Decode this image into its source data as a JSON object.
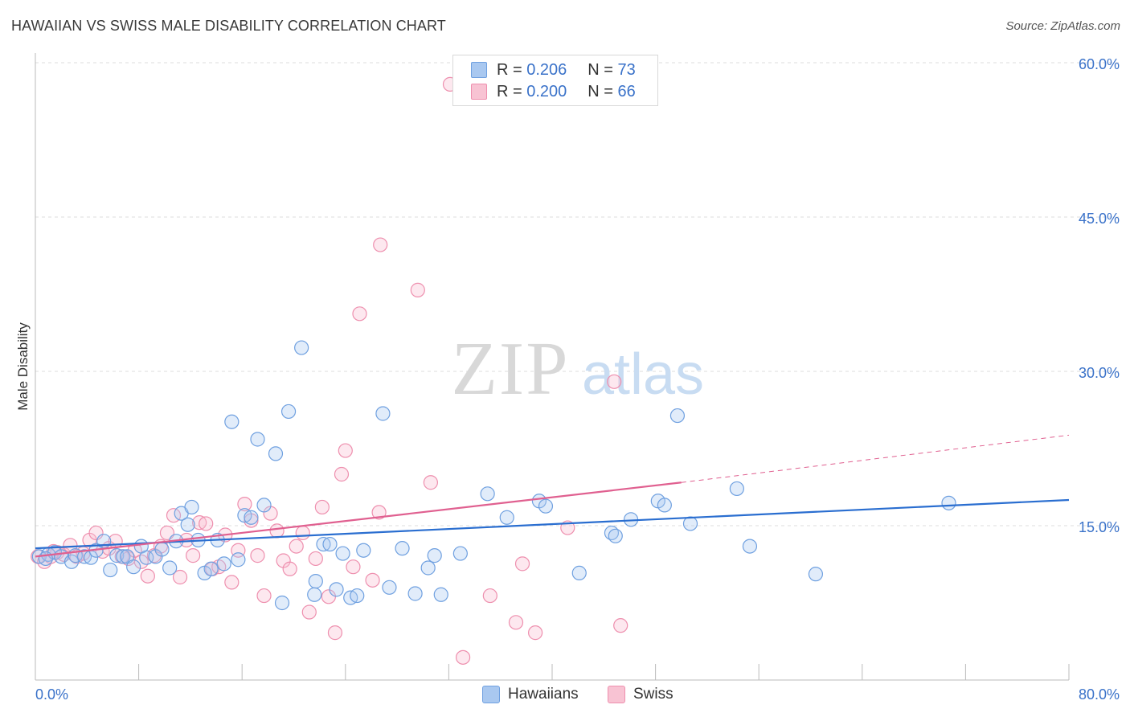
{
  "title": "HAWAIIAN VS SWISS MALE DISABILITY CORRELATION CHART",
  "source": "Source: ZipAtlas.com",
  "watermark": {
    "zip": "ZIP",
    "atlas": "atlas"
  },
  "legend": {
    "rows": [
      {
        "r_label": "R =",
        "r_value": "0.206",
        "n_label": "N =",
        "n_value": "73",
        "color": "#a9c8f0",
        "border": "#6fa0e0"
      },
      {
        "r_label": "R =",
        "r_value": "0.200",
        "n_label": "N =",
        "n_value": "66",
        "color": "#f8c3d3",
        "border": "#ee8fae"
      }
    ]
  },
  "bottom_legend": [
    {
      "label": "Hawaiians",
      "color": "#a9c8f0",
      "border": "#6fa0e0"
    },
    {
      "label": "Swiss",
      "color": "#f8c3d3",
      "border": "#ee8fae"
    }
  ],
  "chart_data": {
    "type": "scatter",
    "title": "HAWAIIAN VS SWISS MALE DISABILITY CORRELATION CHART",
    "ylabel": "Male Disability",
    "xlabel": "",
    "xlim": [
      0,
      80
    ],
    "ylim": [
      0,
      60
    ],
    "x_tick_labels": [
      "0.0%",
      "80.0%"
    ],
    "y_tick_labels": [
      "15.0%",
      "30.0%",
      "45.0%",
      "60.0%"
    ],
    "y_ticks": [
      15,
      30,
      45,
      60
    ],
    "grid": "horizontal dashed",
    "colors": {
      "hawaiians": "#6fa0e0",
      "swiss": "#ee8fae",
      "hawaiians_line": "#2a6ed0",
      "swiss_line": "#e06090"
    },
    "series": [
      {
        "name": "Hawaiians",
        "points": [
          [
            0.3,
            12.0
          ],
          [
            1.0,
            12.2
          ],
          [
            1.5,
            12.4
          ],
          [
            2.0,
            12.0
          ],
          [
            2.8,
            11.5
          ],
          [
            3.1,
            12.1
          ],
          [
            3.8,
            12.0
          ],
          [
            4.3,
            11.9
          ],
          [
            4.7,
            12.6
          ],
          [
            5.3,
            13.5
          ],
          [
            5.8,
            10.7
          ],
          [
            6.3,
            12.1
          ],
          [
            6.8,
            12.0
          ],
          [
            7.1,
            12.0
          ],
          [
            7.6,
            11.0
          ],
          [
            8.2,
            13.0
          ],
          [
            8.6,
            11.9
          ],
          [
            9.3,
            12.0
          ],
          [
            9.8,
            12.7
          ],
          [
            10.4,
            10.9
          ],
          [
            10.9,
            13.5
          ],
          [
            11.3,
            16.2
          ],
          [
            11.8,
            15.1
          ],
          [
            12.1,
            16.8
          ],
          [
            12.6,
            13.6
          ],
          [
            13.1,
            10.4
          ],
          [
            13.6,
            10.8
          ],
          [
            14.1,
            13.6
          ],
          [
            14.6,
            11.3
          ],
          [
            15.2,
            25.1
          ],
          [
            15.7,
            11.7
          ],
          [
            16.2,
            16.0
          ],
          [
            16.7,
            15.8
          ],
          [
            17.2,
            23.4
          ],
          [
            17.7,
            17.0
          ],
          [
            18.6,
            22.0
          ],
          [
            19.1,
            7.5
          ],
          [
            19.6,
            26.1
          ],
          [
            20.6,
            32.3
          ],
          [
            21.6,
            8.3
          ],
          [
            21.7,
            9.6
          ],
          [
            22.3,
            13.2
          ],
          [
            22.8,
            13.2
          ],
          [
            23.3,
            8.8
          ],
          [
            23.8,
            12.3
          ],
          [
            24.4,
            8.0
          ],
          [
            24.9,
            8.2
          ],
          [
            25.4,
            12.6
          ],
          [
            26.9,
            25.9
          ],
          [
            27.4,
            9.0
          ],
          [
            28.4,
            12.8
          ],
          [
            29.4,
            8.4
          ],
          [
            30.4,
            10.9
          ],
          [
            30.9,
            12.1
          ],
          [
            31.4,
            8.3
          ],
          [
            32.9,
            12.3
          ],
          [
            35.0,
            18.1
          ],
          [
            36.5,
            15.8
          ],
          [
            39.0,
            17.4
          ],
          [
            39.5,
            16.9
          ],
          [
            42.1,
            10.4
          ],
          [
            44.6,
            14.3
          ],
          [
            44.9,
            14.0
          ],
          [
            46.1,
            15.6
          ],
          [
            48.2,
            17.4
          ],
          [
            48.7,
            17.0
          ],
          [
            49.7,
            25.7
          ],
          [
            50.7,
            15.2
          ],
          [
            54.3,
            18.6
          ],
          [
            55.3,
            13.0
          ],
          [
            60.4,
            10.3
          ],
          [
            70.7,
            17.2
          ],
          [
            0.8,
            11.8
          ]
        ]
      },
      {
        "name": "Swiss",
        "points": [
          [
            0.2,
            12.0
          ],
          [
            0.7,
            11.5
          ],
          [
            1.2,
            12.0
          ],
          [
            1.7,
            12.4
          ],
          [
            2.2,
            12.2
          ],
          [
            2.7,
            13.1
          ],
          [
            3.2,
            12.0
          ],
          [
            3.7,
            12.3
          ],
          [
            4.2,
            13.6
          ],
          [
            4.7,
            14.3
          ],
          [
            5.2,
            12.5
          ],
          [
            5.7,
            12.8
          ],
          [
            6.2,
            13.5
          ],
          [
            6.7,
            12.0
          ],
          [
            7.2,
            11.8
          ],
          [
            7.7,
            12.6
          ],
          [
            8.2,
            11.5
          ],
          [
            8.7,
            10.1
          ],
          [
            9.2,
            12.1
          ],
          [
            9.7,
            13.0
          ],
          [
            10.2,
            14.3
          ],
          [
            10.7,
            16.0
          ],
          [
            11.2,
            10.0
          ],
          [
            11.7,
            13.6
          ],
          [
            12.2,
            12.1
          ],
          [
            12.7,
            15.3
          ],
          [
            13.2,
            15.2
          ],
          [
            13.7,
            10.8
          ],
          [
            14.2,
            11.0
          ],
          [
            14.7,
            14.1
          ],
          [
            15.2,
            9.5
          ],
          [
            15.7,
            12.6
          ],
          [
            16.2,
            17.1
          ],
          [
            16.7,
            15.5
          ],
          [
            17.2,
            12.1
          ],
          [
            17.7,
            8.2
          ],
          [
            18.2,
            16.2
          ],
          [
            18.7,
            14.5
          ],
          [
            19.2,
            11.6
          ],
          [
            19.7,
            10.8
          ],
          [
            20.2,
            13.0
          ],
          [
            20.7,
            14.3
          ],
          [
            21.2,
            6.6
          ],
          [
            21.7,
            11.8
          ],
          [
            22.2,
            16.8
          ],
          [
            22.7,
            8.1
          ],
          [
            23.2,
            4.6
          ],
          [
            23.7,
            20.0
          ],
          [
            24.0,
            22.3
          ],
          [
            24.6,
            11.0
          ],
          [
            25.1,
            35.6
          ],
          [
            26.1,
            9.7
          ],
          [
            26.6,
            16.3
          ],
          [
            26.7,
            42.3
          ],
          [
            29.6,
            37.9
          ],
          [
            30.6,
            19.2
          ],
          [
            32.1,
            57.9
          ],
          [
            33.1,
            2.2
          ],
          [
            35.2,
            8.2
          ],
          [
            37.2,
            5.6
          ],
          [
            37.7,
            11.3
          ],
          [
            38.7,
            4.6
          ],
          [
            41.2,
            14.8
          ],
          [
            44.8,
            29.0
          ],
          [
            45.3,
            5.3
          ],
          [
            1.4,
            12.5
          ]
        ]
      }
    ],
    "trend_lines": [
      {
        "series": "Hawaiians",
        "x": [
          0,
          80
        ],
        "y": [
          12.8,
          17.5
        ]
      },
      {
        "series": "Swiss",
        "x": [
          0,
          50
        ],
        "y": [
          12.0,
          19.2
        ],
        "dashed_extension": {
          "x": [
            50,
            80
          ],
          "y": [
            19.2,
            23.8
          ]
        }
      }
    ]
  }
}
